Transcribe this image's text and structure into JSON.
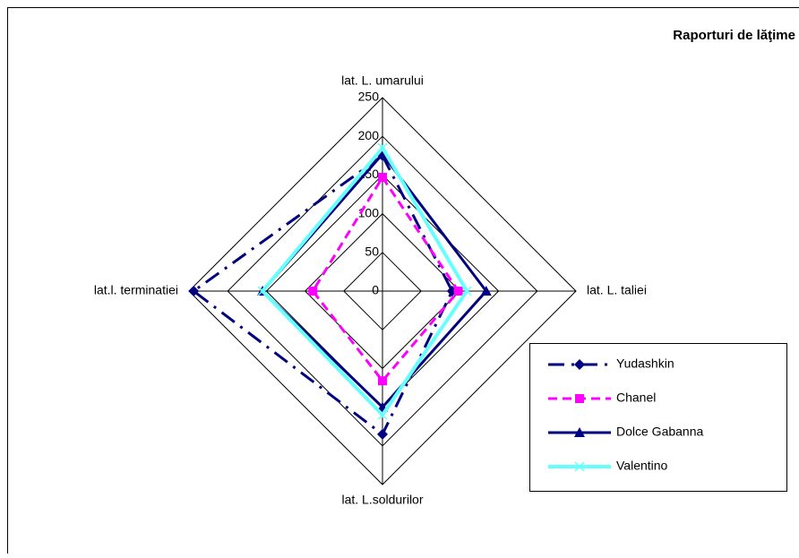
{
  "chart_data": {
    "type": "radar",
    "title": "Raporturi de lăţime",
    "categories": [
      "lat. L. umarului",
      "lat. L. taliei",
      "lat. L.soldurilor",
      "lat.l. terminatiei"
    ],
    "rlim": [
      0,
      250
    ],
    "rticks": [
      0,
      50,
      100,
      150,
      200,
      250
    ],
    "grid": true,
    "legend": "lower-right",
    "series": [
      {
        "name": "Yudashkin",
        "color": "#000080",
        "dash": "18 8 3 8",
        "marker": "diamond",
        "values": [
          175,
          90,
          185,
          244
        ]
      },
      {
        "name": "Chanel",
        "color": "#ff00ff",
        "dash": "10 6",
        "marker": "square",
        "values": [
          147,
          98,
          116,
          90
        ]
      },
      {
        "name": "Dolce  Gabanna",
        "color": "#000080",
        "dash": "",
        "marker": "triangle",
        "values": [
          177,
          134,
          150,
          155
        ]
      },
      {
        "name": "Valentino",
        "color": "#66ffff",
        "dash": "",
        "marker": "x",
        "values": [
          185,
          109,
          160,
          155
        ]
      }
    ]
  }
}
